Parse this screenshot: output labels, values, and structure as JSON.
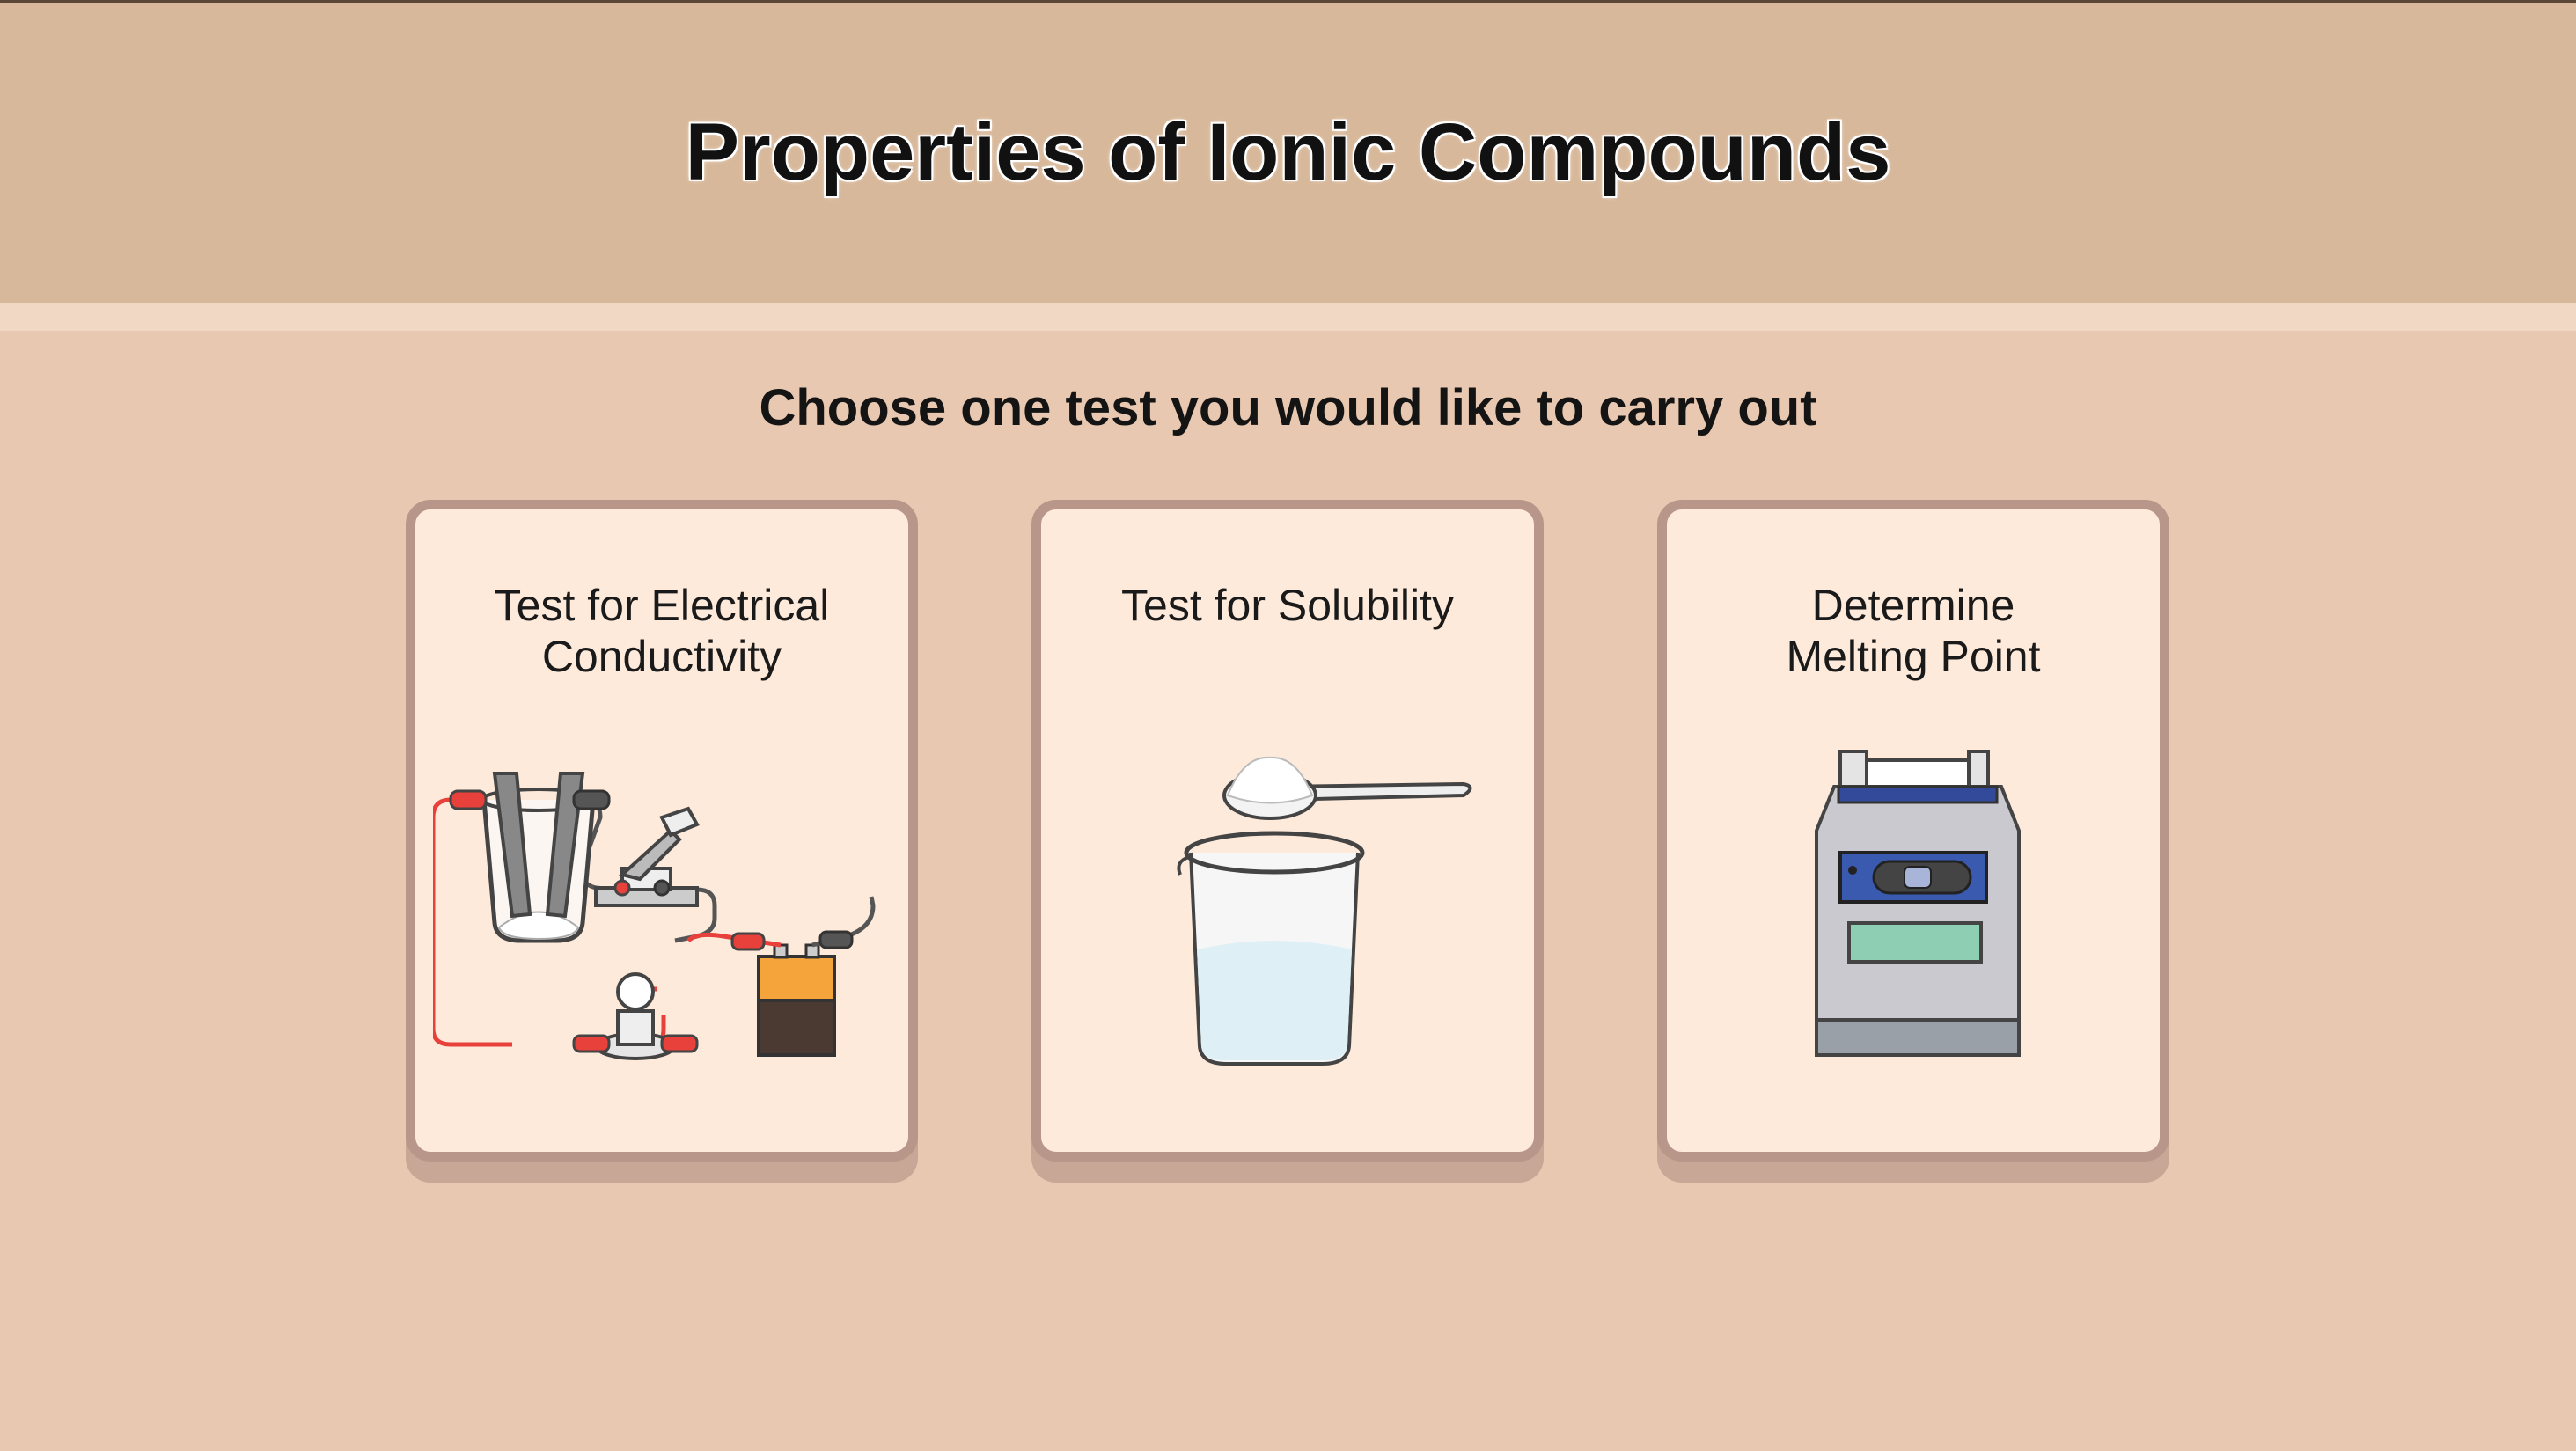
{
  "header": {
    "title": "Properties of Ionic Compounds"
  },
  "prompt": "Choose one test you would like to carry out",
  "cards": [
    {
      "title": "Test for Electrical\nConductivity"
    },
    {
      "title": "Test for Solubility"
    },
    {
      "title": "Determine\nMelting Point"
    }
  ],
  "colors": {
    "header_bg": "#d8b89a",
    "page_bg": "#e8c8b0",
    "card_bg": "#fdeadb",
    "card_border": "#b8978a"
  }
}
